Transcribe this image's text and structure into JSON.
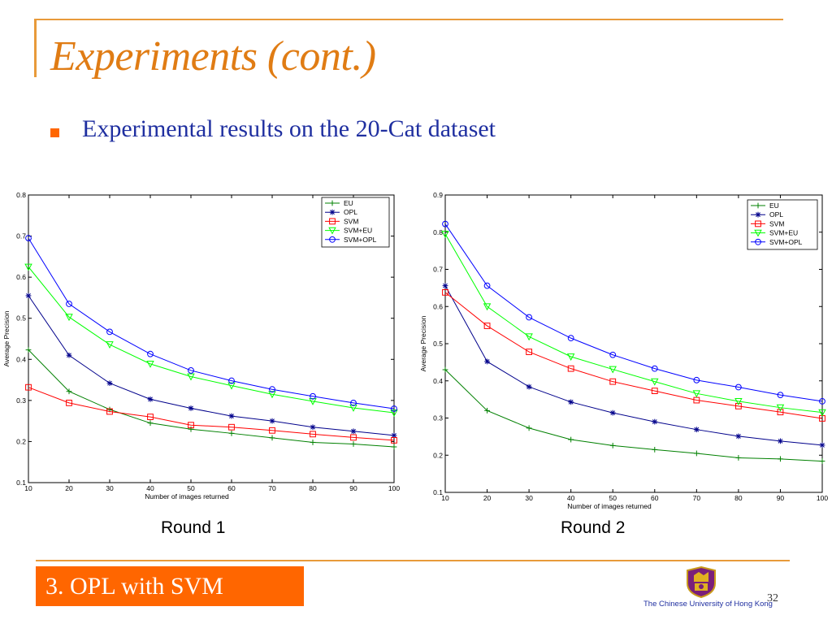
{
  "slide": {
    "title": "Experiments (cont.)",
    "bullet": "Experimental results on the 20-Cat dataset",
    "section": "3. OPL with SVM",
    "university": "The Chinese University of Hong Kong",
    "page_number": "32"
  },
  "colors": {
    "accent": "#e89a3a",
    "title": "#e07c14",
    "bullet_text": "#1f2fa0",
    "section_bg": "#ff6600"
  },
  "chart_data": [
    {
      "type": "line",
      "caption": "Round 1",
      "xlabel": "Number of images returned",
      "ylabel": "Average Precision",
      "xlim": [
        10,
        100
      ],
      "ylim": [
        0.1,
        0.8
      ],
      "xticks": [
        "10",
        "20",
        "30",
        "40",
        "50",
        "60",
        "70",
        "80",
        "90",
        "100"
      ],
      "yticks": [
        "0.1",
        "0.2",
        "0.3",
        "0.4",
        "0.5",
        "0.6",
        "0.7",
        "0.8"
      ],
      "legend": "top-right",
      "grid": false,
      "x": [
        10,
        20,
        30,
        40,
        50,
        60,
        70,
        80,
        90,
        100
      ],
      "series": [
        {
          "name": "EU",
          "color": "#008000",
          "marker": "plus",
          "values": [
            0.423,
            0.322,
            0.278,
            0.245,
            0.23,
            0.22,
            0.209,
            0.198,
            0.194,
            0.187
          ]
        },
        {
          "name": "OPL",
          "color": "#00008b",
          "marker": "star",
          "values": [
            0.555,
            0.41,
            0.342,
            0.303,
            0.281,
            0.262,
            0.25,
            0.235,
            0.225,
            0.215
          ]
        },
        {
          "name": "SVM",
          "color": "#ff0000",
          "marker": "square",
          "values": [
            0.332,
            0.294,
            0.273,
            0.26,
            0.24,
            0.235,
            0.227,
            0.218,
            0.21,
            0.203
          ]
        },
        {
          "name": "SVM+EU",
          "color": "#00ff00",
          "marker": "triangle-down",
          "values": [
            0.625,
            0.503,
            0.436,
            0.389,
            0.358,
            0.336,
            0.315,
            0.298,
            0.282,
            0.27
          ]
        },
        {
          "name": "SVM+OPL",
          "color": "#0000ff",
          "marker": "circle",
          "values": [
            0.695,
            0.535,
            0.467,
            0.413,
            0.373,
            0.348,
            0.327,
            0.31,
            0.294,
            0.28
          ]
        }
      ]
    },
    {
      "type": "line",
      "caption": "Round 2",
      "xlabel": "Number of images returned",
      "ylabel": "Average Precision",
      "xlim": [
        10,
        100
      ],
      "ylim": [
        0.1,
        0.9
      ],
      "xticks": [
        "10",
        "20",
        "30",
        "40",
        "50",
        "60",
        "70",
        "80",
        "90",
        "100"
      ],
      "yticks": [
        "0.1",
        "0.2",
        "0.3",
        "0.4",
        "0.5",
        "0.6",
        "0.7",
        "0.8",
        "0.9"
      ],
      "legend": "top-right",
      "grid": false,
      "x": [
        10,
        20,
        30,
        40,
        50,
        60,
        70,
        80,
        90,
        100
      ],
      "series": [
        {
          "name": "EU",
          "color": "#008000",
          "marker": "plus",
          "values": [
            0.43,
            0.32,
            0.273,
            0.242,
            0.226,
            0.215,
            0.205,
            0.193,
            0.19,
            0.184
          ]
        },
        {
          "name": "OPL",
          "color": "#00008b",
          "marker": "star",
          "values": [
            0.656,
            0.452,
            0.384,
            0.343,
            0.314,
            0.29,
            0.269,
            0.251,
            0.238,
            0.227
          ]
        },
        {
          "name": "SVM",
          "color": "#ff0000",
          "marker": "square",
          "values": [
            0.638,
            0.548,
            0.478,
            0.433,
            0.398,
            0.373,
            0.348,
            0.332,
            0.316,
            0.299
          ]
        },
        {
          "name": "SVM+EU",
          "color": "#00ff00",
          "marker": "triangle-down",
          "values": [
            0.795,
            0.6,
            0.519,
            0.465,
            0.431,
            0.398,
            0.366,
            0.345,
            0.328,
            0.315
          ]
        },
        {
          "name": "SVM+OPL",
          "color": "#0000ff",
          "marker": "circle",
          "values": [
            0.822,
            0.656,
            0.571,
            0.515,
            0.47,
            0.433,
            0.402,
            0.383,
            0.362,
            0.345
          ]
        }
      ]
    }
  ]
}
